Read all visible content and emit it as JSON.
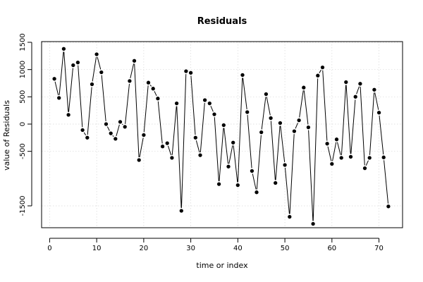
{
  "chart_data": {
    "type": "line",
    "title": "Residuals",
    "xlabel": "time or index",
    "ylabel": "value of Residuals",
    "xlim": [
      0,
      72
    ],
    "ylim": [
      -1800,
      1500
    ],
    "grid": true,
    "x_ticks": [
      0,
      10,
      20,
      30,
      40,
      50,
      60,
      70
    ],
    "y_ticks": [
      -1500,
      -500,
      0,
      500,
      1000,
      1500
    ],
    "x": [
      1,
      2,
      3,
      4,
      5,
      6,
      7,
      8,
      9,
      10,
      11,
      12,
      13,
      14,
      15,
      16,
      17,
      18,
      19,
      20,
      21,
      22,
      23,
      24,
      25,
      26,
      27,
      28,
      29,
      30,
      31,
      32,
      33,
      34,
      35,
      36,
      37,
      38,
      39,
      40,
      41,
      42,
      43,
      44,
      45,
      46,
      47,
      48,
      49,
      50,
      51,
      52,
      53,
      54,
      55,
      56,
      57,
      58,
      59,
      60,
      61,
      62,
      63,
      64,
      65,
      66,
      67,
      68,
      69,
      70,
      71,
      72
    ],
    "values": [
      830,
      480,
      1380,
      170,
      1080,
      1130,
      -110,
      -250,
      730,
      1280,
      950,
      0,
      -170,
      -270,
      40,
      -50,
      790,
      1160,
      -660,
      -200,
      760,
      650,
      470,
      -410,
      -350,
      -620,
      380,
      -1590,
      970,
      940,
      -250,
      -570,
      440,
      380,
      180,
      -1100,
      -20,
      -780,
      -340,
      -1120,
      900,
      220,
      -860,
      -1250,
      -150,
      550,
      110,
      -1080,
      20,
      -750,
      -1700,
      -130,
      70,
      670,
      -60,
      -1830,
      890,
      1040,
      -360,
      -730,
      -280,
      -620,
      770,
      -600,
      500,
      740,
      -810,
      -620,
      630,
      210,
      -610,
      -1510
    ]
  }
}
